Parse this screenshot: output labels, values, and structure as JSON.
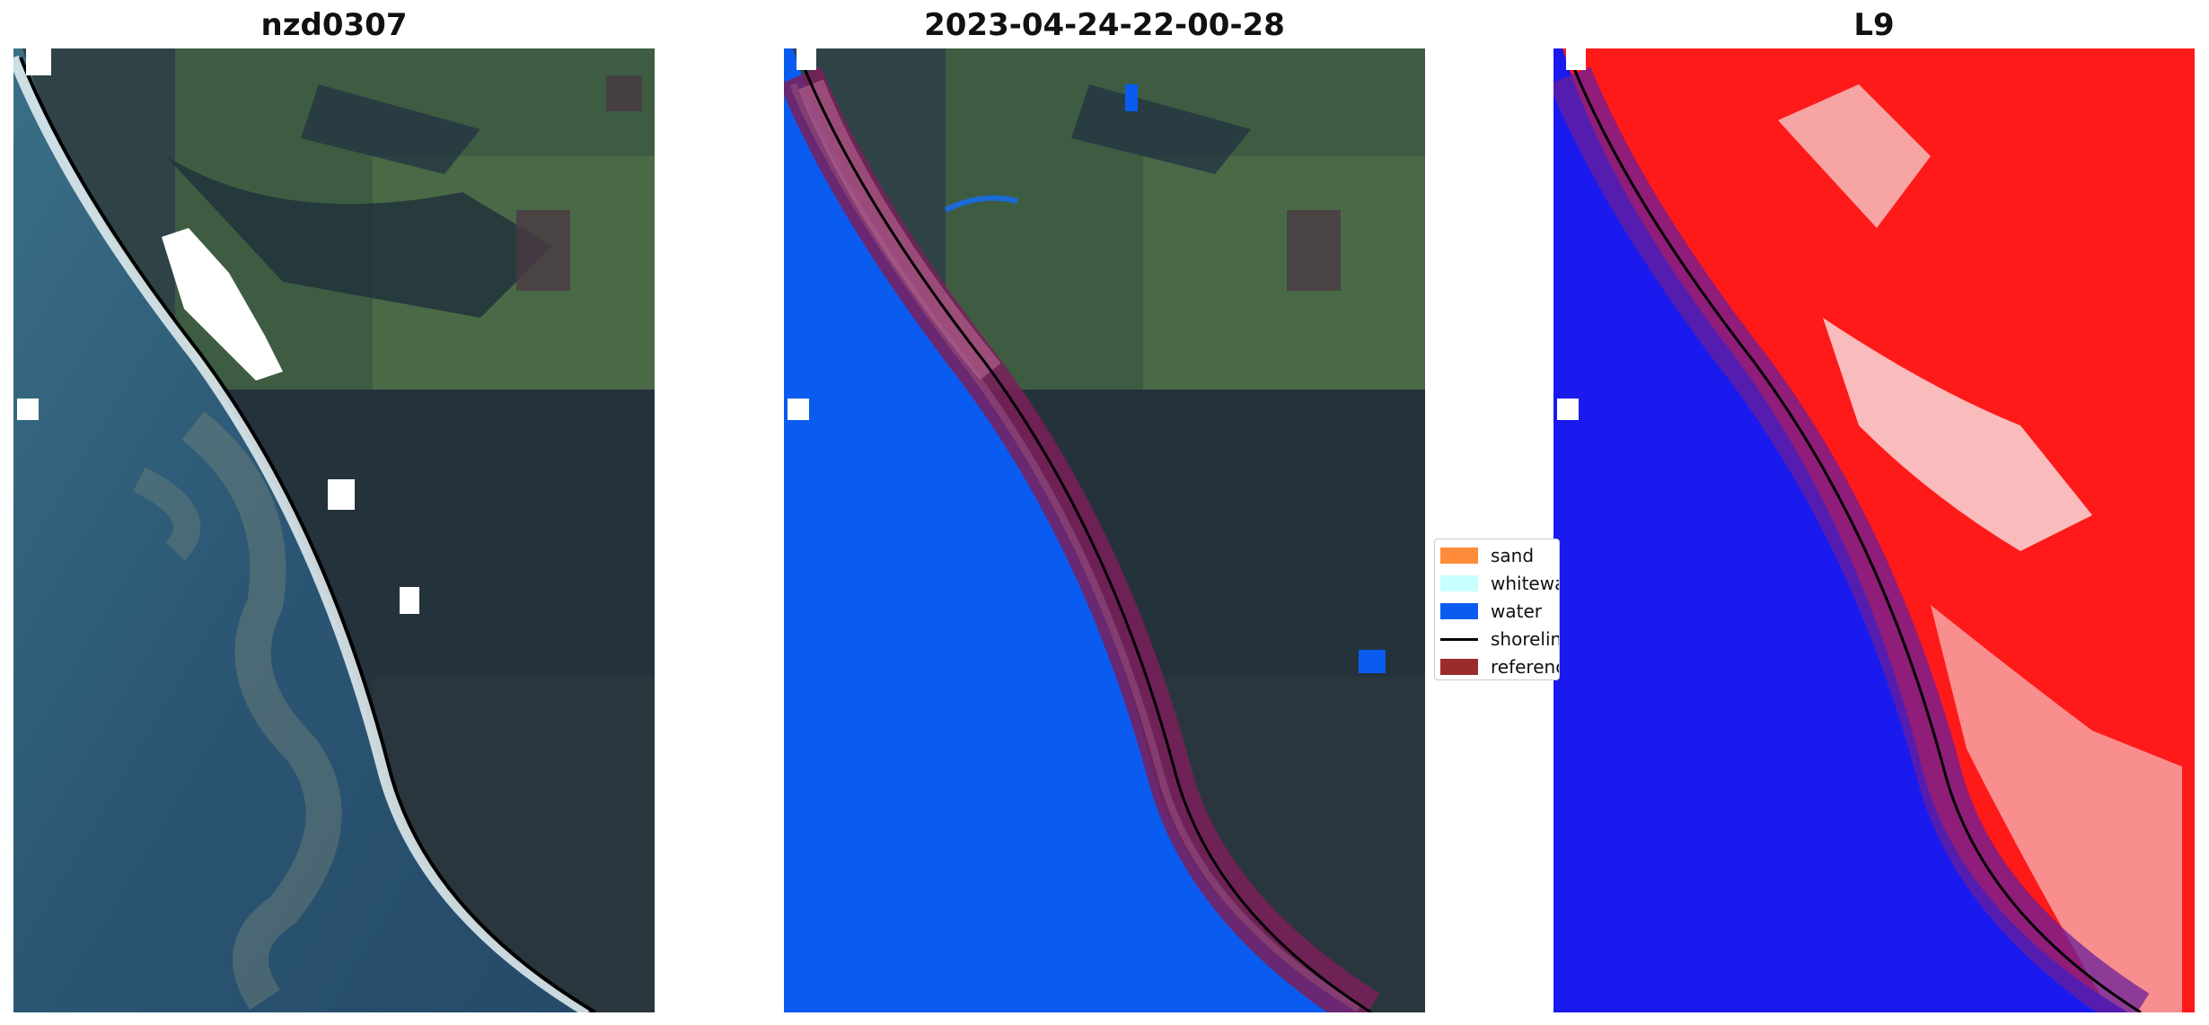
{
  "panels": [
    {
      "title": "nzd0307",
      "kind": "rgb"
    },
    {
      "title": "2023-04-24-22-00-28",
      "kind": "classified"
    },
    {
      "title": "L9",
      "kind": "index"
    }
  ],
  "legend": {
    "items": [
      {
        "label": "sand",
        "color": "#ff8c3a",
        "type": "patch"
      },
      {
        "label": "whitewater",
        "color": "#c8ffff",
        "type": "patch"
      },
      {
        "label": "water",
        "color": "#0a5cf0",
        "type": "patch"
      },
      {
        "label": "shoreline",
        "color": "#000000",
        "type": "line"
      },
      {
        "label": "reference",
        "color": "#9b2c2c",
        "type": "patch"
      }
    ]
  },
  "colors": {
    "land_dark": "#2a3a44",
    "land_green": "#3b5a40",
    "sea_rgb": "#2f5a73",
    "water_class": "#0a5cf0",
    "buffer_purple": "#7a1f5a",
    "index_red": "#ff1a1a",
    "index_blue": "#1a1aee"
  }
}
